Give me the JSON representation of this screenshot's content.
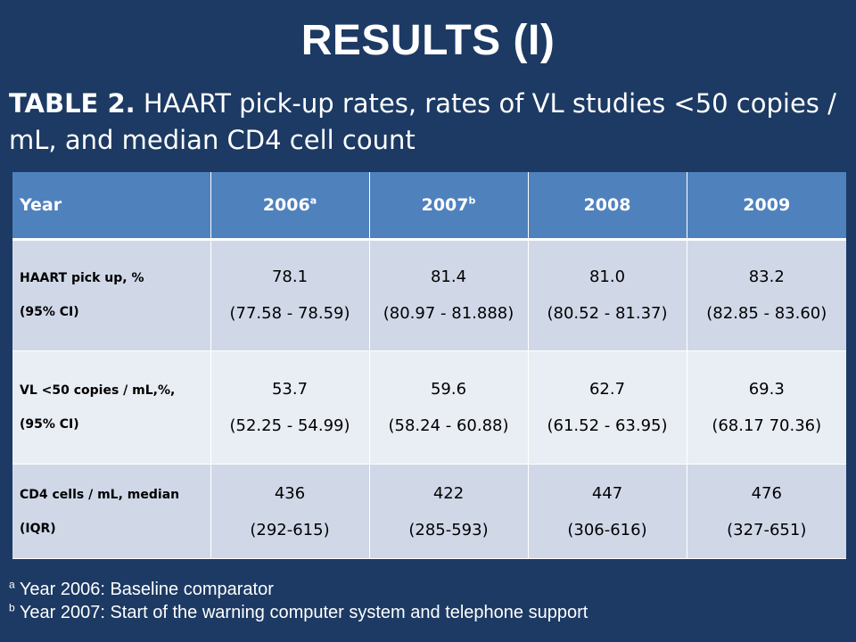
{
  "slide": {
    "title": "RESULTS (I)",
    "caption_label": "TABLE 2.",
    "caption_text": " HAART pick-up rates, rates of VL studies <50 copies / mL, and median CD4 cell count"
  },
  "table": {
    "header": {
      "year_label": "Year",
      "col1": "2006",
      "col1_sup": "a",
      "col2": "2007",
      "col2_sup": "b",
      "col3": "2008",
      "col4": "2009"
    },
    "rows": [
      {
        "label_line1": "HAART pick up, %",
        "label_line2": "(95% CI)",
        "cells": [
          {
            "value": "78.1",
            "ci": "(77.58 - 78.59)"
          },
          {
            "value": "81.4",
            "ci": "(80.97 - 81.888)"
          },
          {
            "value": "81.0",
            "ci": "(80.52 - 81.37)"
          },
          {
            "value": "83.2",
            "ci": "(82.85 - 83.60)"
          }
        ]
      },
      {
        "label_line1": "VL <50 copies / mL,%,",
        "label_line2": "(95% CI)",
        "cells": [
          {
            "value": "53.7",
            "ci": "(52.25 - 54.99)"
          },
          {
            "value": "59.6",
            "ci": "(58.24 - 60.88)"
          },
          {
            "value": "62.7",
            "ci": "(61.52 -  63.95)"
          },
          {
            "value": "69.3",
            "ci": "(68.17   70.36)"
          }
        ]
      },
      {
        "label_line1": "CD4 cells / mL, median",
        "label_line2": "(IQR)",
        "cells": [
          {
            "value": "436",
            "ci": "(292-615)"
          },
          {
            "value": "422",
            "ci": "(285-593)"
          },
          {
            "value": "447",
            "ci": "(306-616)"
          },
          {
            "value": "476",
            "ci": "(327-651)"
          }
        ]
      }
    ]
  },
  "footnotes": [
    {
      "mark": "a",
      "text": " Year 2006: Baseline comparator"
    },
    {
      "mark": "b",
      "text": " Year 2007: Start of the warning computer system and telephone support"
    }
  ],
  "colors": {
    "background": "#1c3a63",
    "header_fill": "#4f81bd",
    "row_dark": "#d0d8e8",
    "row_light": "#e9edf4"
  }
}
